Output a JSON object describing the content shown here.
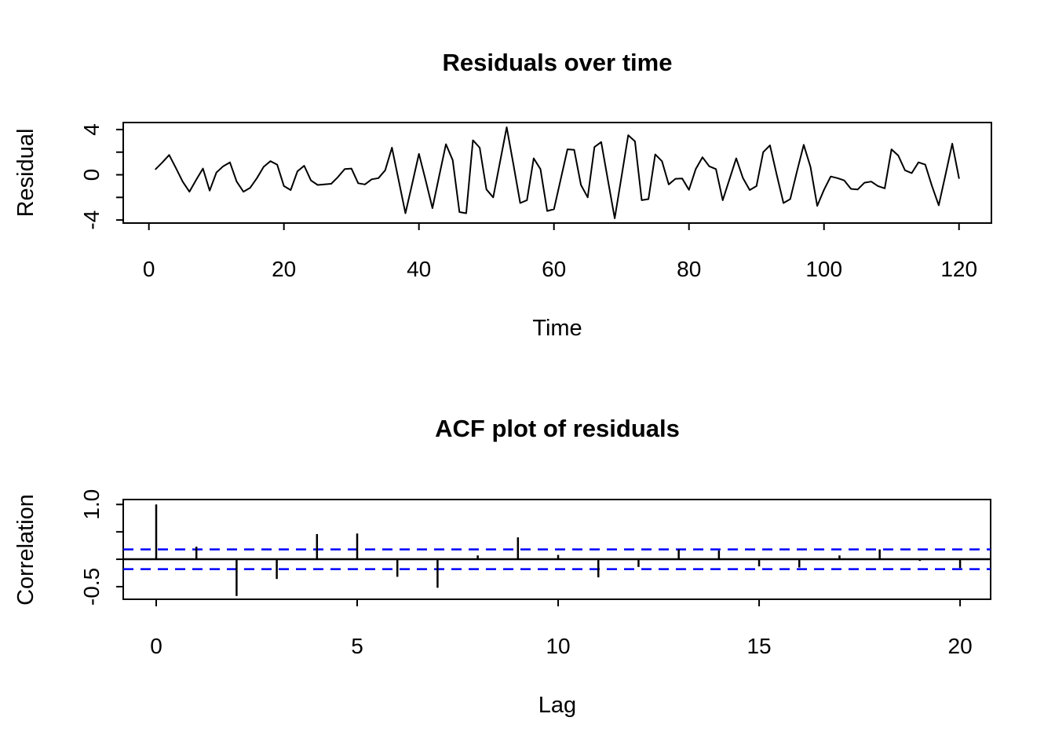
{
  "figure": {
    "background_color": "#ffffff",
    "foreground_color": "#000000"
  },
  "chart_data": [
    {
      "type": "line",
      "title": "Residuals over time",
      "xlabel": "Time",
      "ylabel": "Residual",
      "x_ticks": [
        0,
        20,
        40,
        60,
        80,
        100,
        120
      ],
      "x_tick_labels": [
        "0",
        "20",
        "40",
        "60",
        "80",
        "100",
        "120"
      ],
      "y_ticks": [
        4,
        2,
        0,
        -2,
        -4
      ],
      "y_tick_labels": [
        "4",
        "",
        "0",
        "",
        "-4"
      ],
      "xlim": [
        -3.8,
        124.8
      ],
      "ylim": [
        -4.27,
        4.62
      ],
      "grid": false,
      "legend": null,
      "series": [
        {
          "name": "residuals",
          "color": "#000000",
          "x_start": 1,
          "x_step": 1,
          "values": [
            0.5,
            1.1,
            1.75,
            0.6,
            -0.6,
            -1.5,
            -0.45,
            0.55,
            -1.4,
            0.2,
            0.75,
            1.1,
            -0.6,
            -1.5,
            -1.15,
            -0.3,
            0.7,
            1.2,
            0.9,
            -1.0,
            -1.35,
            0.3,
            0.8,
            -0.5,
            -0.9,
            -0.85,
            -0.8,
            -0.2,
            0.5,
            0.55,
            -0.75,
            -0.85,
            -0.4,
            -0.3,
            0.4,
            2.4,
            -0.5,
            -3.4,
            -0.8,
            1.85,
            -0.5,
            -2.95,
            -0.1,
            2.7,
            1.3,
            -3.3,
            -3.4,
            3.05,
            2.4,
            -1.3,
            -2.0,
            1.1,
            4.2,
            0.9,
            -2.5,
            -2.25,
            1.45,
            0.5,
            -3.2,
            -3.05,
            -0.4,
            2.25,
            2.2,
            -0.9,
            -2.0,
            2.45,
            2.9,
            -0.5,
            -3.85,
            -0.2,
            3.5,
            2.95,
            -2.25,
            -2.15,
            1.8,
            1.2,
            -0.85,
            -0.35,
            -0.33,
            -1.33,
            0.5,
            1.55,
            0.75,
            0.5,
            -2.25,
            -0.4,
            1.45,
            -0.3,
            -1.35,
            -1.0,
            2.0,
            2.6,
            0.0,
            -2.5,
            -2.15,
            0.3,
            2.65,
            0.7,
            -2.75,
            -1.33,
            -0.15,
            -0.3,
            -0.5,
            -1.25,
            -1.3,
            -0.7,
            -0.6,
            -1.0,
            -1.2,
            2.25,
            1.7,
            0.4,
            0.15,
            1.1,
            0.9,
            -1.0,
            -2.7,
            0.0,
            2.75,
            -0.3
          ]
        }
      ]
    },
    {
      "type": "bar",
      "title": "ACF plot of residuals",
      "xlabel": "Lag",
      "ylabel": "Correlation",
      "x_ticks": [
        0,
        5,
        10,
        15,
        20
      ],
      "x_tick_labels": [
        "0",
        "5",
        "10",
        "15",
        "20"
      ],
      "y_ticks": [
        1.0,
        0.5,
        0.0,
        -0.5
      ],
      "y_tick_labels": [
        "1.0",
        "",
        "",
        "-0.5"
      ],
      "xlim": [
        -0.82,
        20.76
      ],
      "ylim": [
        -0.73,
        1.09
      ],
      "grid": false,
      "legend": null,
      "zero_line": 0,
      "confidence_bounds": [
        0.18,
        -0.18
      ],
      "confidence_line_color": "#0000ff",
      "confidence_line_style": "dashed",
      "bar_color": "#000000",
      "lags": [
        0,
        1,
        2,
        3,
        4,
        5,
        6,
        7,
        8,
        9,
        10,
        11,
        12,
        13,
        14,
        15,
        16,
        17,
        18,
        19,
        20
      ],
      "values": [
        1.0,
        0.23,
        -0.67,
        -0.36,
        0.46,
        0.47,
        -0.32,
        -0.52,
        0.07,
        0.4,
        0.08,
        -0.33,
        -0.14,
        0.18,
        0.16,
        -0.13,
        -0.15,
        0.07,
        0.18,
        -0.03,
        -0.16
      ]
    }
  ]
}
